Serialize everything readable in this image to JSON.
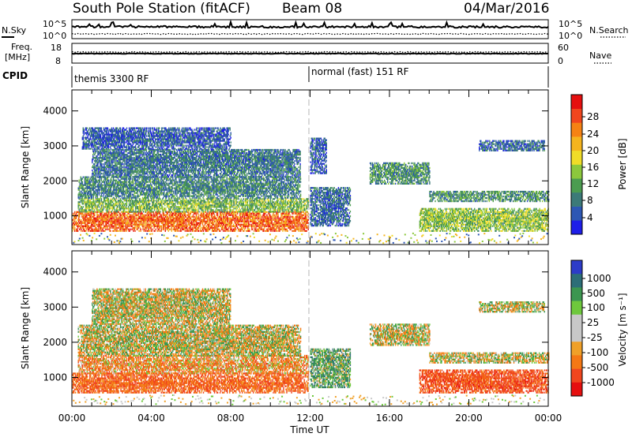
{
  "header": {
    "station": "South Pole Station (fitACF)",
    "beam": "Beam 08",
    "date": "04/Mar/2016"
  },
  "noise_panel": {
    "left_label": "N.Sky",
    "right_label": "N.Search",
    "left_ticks": [
      "10^5",
      "10^0"
    ],
    "right_ticks": [
      "10^5",
      "10^0"
    ]
  },
  "freq_panel": {
    "left_label_line1": "Freq.",
    "left_label_line2": "[MHz]",
    "right_label": "Nave",
    "left_ticks": [
      "18",
      "8"
    ],
    "right_ticks": [
      "60",
      "0"
    ]
  },
  "cpid_panel": {
    "label": "CPID",
    "segments": [
      {
        "name": "themis 3300 RF",
        "start_hour": 0
      },
      {
        "name": "normal (fast) 151 RF",
        "start_hour": 12
      }
    ]
  },
  "chart_data": [
    {
      "type": "heatmap",
      "name": "power",
      "ylabel": "Slant Range [km]",
      "ylim": [
        180,
        4600
      ],
      "yticks": [
        1000,
        2000,
        3000,
        4000
      ],
      "xlim": [
        0,
        24
      ],
      "colorbar": {
        "label": "Power [dB]",
        "ticks": [
          "4",
          "8",
          "12",
          "16",
          "20",
          "24",
          "28"
        ],
        "colors": [
          "#1e1ee8",
          "#2d57b4",
          "#3c7a78",
          "#4b9c50",
          "#8cc83c",
          "#f0dc28",
          "#f5b41e",
          "#f58214",
          "#f0461e",
          "#e60f0f"
        ]
      },
      "regions": [
        {
          "t0": 0.0,
          "t1": 11.9,
          "r0": 550,
          "r1": 1100,
          "power": 26
        },
        {
          "t0": 0.3,
          "t1": 11.9,
          "r0": 1100,
          "r1": 1500,
          "power": 14
        },
        {
          "t0": 0.3,
          "t1": 11.5,
          "r0": 1500,
          "r1": 2100,
          "power": 10
        },
        {
          "t0": 1.0,
          "t1": 11.5,
          "r0": 2100,
          "r1": 2900,
          "power": 9
        },
        {
          "t0": 0.5,
          "t1": 8.0,
          "r0": 2900,
          "r1": 3500,
          "power": 7
        },
        {
          "t0": 12.0,
          "t1": 14.0,
          "r0": 700,
          "r1": 1800,
          "power": 8
        },
        {
          "t0": 12.0,
          "t1": 12.8,
          "r0": 2200,
          "r1": 3200,
          "power": 7
        },
        {
          "t0": 15.0,
          "t1": 18.0,
          "r0": 1900,
          "r1": 2500,
          "power": 11
        },
        {
          "t0": 18.0,
          "t1": 24.0,
          "r0": 1400,
          "r1": 1700,
          "power": 11
        },
        {
          "t0": 17.5,
          "t1": 24.0,
          "r0": 550,
          "r1": 1200,
          "power": 15
        },
        {
          "t0": 20.5,
          "t1": 23.8,
          "r0": 2850,
          "r1": 3150,
          "power": 8
        }
      ]
    },
    {
      "type": "heatmap",
      "name": "velocity",
      "ylabel": "Slant Range [km]",
      "xlabel": "Time UT",
      "ylim": [
        180,
        4600
      ],
      "yticks": [
        1000,
        2000,
        3000,
        4000
      ],
      "xlim": [
        0,
        24
      ],
      "xticks": [
        "00:00",
        "04:00",
        "08:00",
        "12:00",
        "16:00",
        "20:00",
        "00:00"
      ],
      "colorbar": {
        "label": "Velocity [m s⁻¹]",
        "ticks": [
          "1000",
          "500",
          "100",
          "25",
          "-25",
          "-100",
          "-500",
          "-1000"
        ],
        "colors": [
          "#2d3cc8",
          "#2d6e78",
          "#3c9650",
          "#6ec83c",
          "#c8c8c8",
          "#c8c8c8",
          "#f0a028",
          "#f57814",
          "#f0461e",
          "#e60f0f"
        ]
      },
      "regions": [
        {
          "t0": 0.0,
          "t1": 11.9,
          "r0": 550,
          "r1": 1100,
          "velocity": -300
        },
        {
          "t0": 0.3,
          "t1": 11.9,
          "r0": 1100,
          "r1": 1600,
          "velocity": -150
        },
        {
          "t0": 0.3,
          "t1": 11.5,
          "r0": 1600,
          "r1": 2500,
          "velocity": 0
        },
        {
          "t0": 1.0,
          "t1": 8.0,
          "r0": 2500,
          "r1": 3500,
          "velocity": 0
        },
        {
          "t0": 12.0,
          "t1": 14.0,
          "r0": 700,
          "r1": 1800,
          "velocity": 150
        },
        {
          "t0": 15.0,
          "t1": 18.0,
          "r0": 1900,
          "r1": 2500,
          "velocity": 0
        },
        {
          "t0": 18.0,
          "t1": 24.0,
          "r0": 1400,
          "r1": 1700,
          "velocity": 0
        },
        {
          "t0": 17.5,
          "t1": 24.0,
          "r0": 550,
          "r1": 1200,
          "velocity": -400
        },
        {
          "t0": 20.5,
          "t1": 23.8,
          "r0": 2850,
          "r1": 3150,
          "velocity": 0
        }
      ]
    }
  ]
}
